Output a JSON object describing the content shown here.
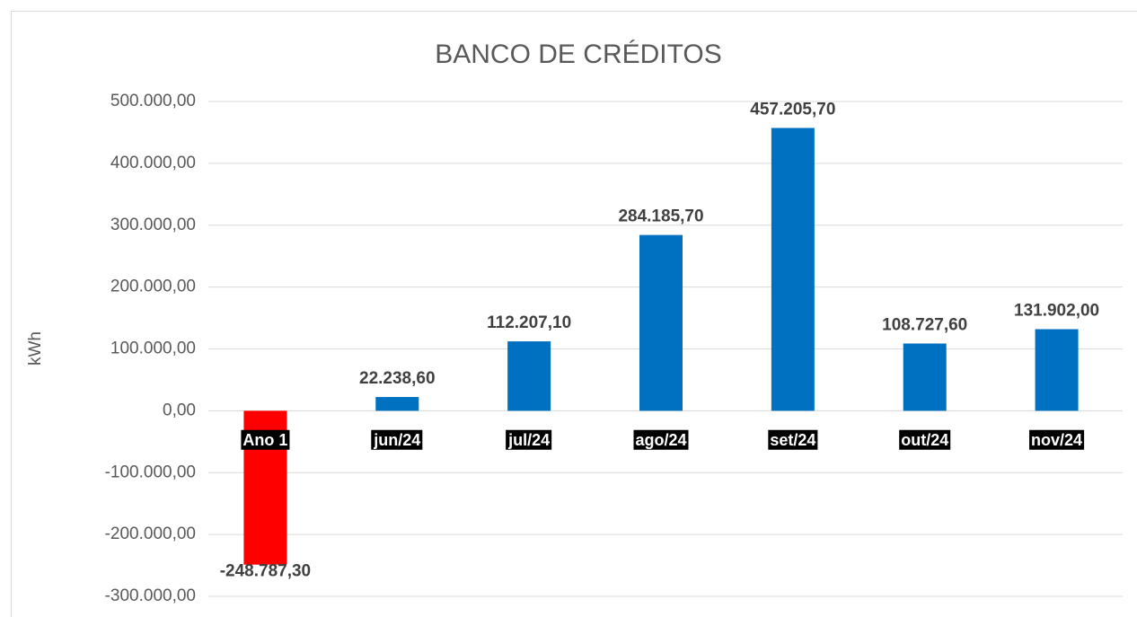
{
  "chart_data": {
    "type": "bar",
    "title": "BANCO DE CRÉDITOS",
    "y_label": "kWh",
    "categories": [
      "Ano 1",
      "jun/24",
      "jul/24",
      "ago/24",
      "set/24",
      "out/24",
      "nov/24"
    ],
    "values": [
      -248787.3,
      22238.6,
      112207.1,
      284185.7,
      457205.7,
      108727.6,
      131902.0
    ],
    "value_labels": [
      "-248.787,30",
      "22.238,60",
      "112.207,10",
      "284.185,70",
      "457.205,70",
      "108.727,60",
      "131.902,00"
    ],
    "colors": [
      "#ff0000",
      "#0070c0",
      "#0070c0",
      "#0070c0",
      "#0070c0",
      "#0070c0",
      "#0070c0"
    ],
    "ylim": [
      -300000,
      500000
    ],
    "yticks": [
      {
        "value": -300000,
        "label": "-300.000,00"
      },
      {
        "value": -200000,
        "label": "-200.000,00"
      },
      {
        "value": -100000,
        "label": "-100.000,00"
      },
      {
        "value": 0,
        "label": "0,00"
      },
      {
        "value": 100000,
        "label": "100.000,00"
      },
      {
        "value": 200000,
        "label": "200.000,00"
      },
      {
        "value": 300000,
        "label": "300.000,00"
      },
      {
        "value": 400000,
        "label": "400.000,00"
      },
      {
        "value": 500000,
        "label": "500.000,00"
      }
    ],
    "grid": true
  }
}
